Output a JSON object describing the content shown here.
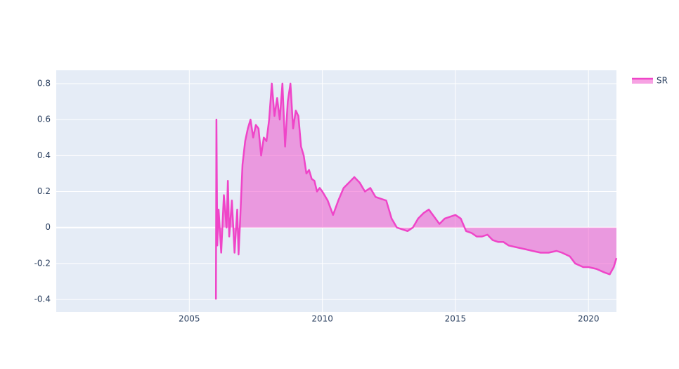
{
  "chart_data": {
    "type": "area",
    "x": [
      2006.0,
      2006.02,
      2006.05,
      2006.1,
      2006.2,
      2006.3,
      2006.4,
      2006.45,
      2006.5,
      2006.6,
      2006.7,
      2006.8,
      2006.85,
      2006.9,
      2007.0,
      2007.1,
      2007.2,
      2007.3,
      2007.4,
      2007.5,
      2007.6,
      2007.7,
      2007.8,
      2007.9,
      2008.0,
      2008.1,
      2008.2,
      2008.3,
      2008.4,
      2008.5,
      2008.6,
      2008.7,
      2008.8,
      2008.9,
      2009.0,
      2009.1,
      2009.2,
      2009.3,
      2009.4,
      2009.5,
      2009.6,
      2009.7,
      2009.8,
      2009.9,
      2010.0,
      2010.2,
      2010.4,
      2010.6,
      2010.8,
      2011.0,
      2011.2,
      2011.4,
      2011.6,
      2011.8,
      2012.0,
      2012.2,
      2012.4,
      2012.6,
      2012.8,
      2013.0,
      2013.2,
      2013.4,
      2013.6,
      2013.8,
      2014.0,
      2014.2,
      2014.4,
      2014.6,
      2014.8,
      2015.0,
      2015.2,
      2015.4,
      2015.6,
      2015.8,
      2016.0,
      2016.2,
      2016.4,
      2016.6,
      2016.8,
      2017.0,
      2017.3,
      2017.6,
      2017.9,
      2018.2,
      2018.5,
      2018.8,
      2019.0,
      2019.3,
      2019.5,
      2019.8,
      2020.0,
      2020.3,
      2020.6,
      2020.8,
      2020.95,
      2021.05
    ],
    "series": [
      {
        "name": "SR",
        "color": "#ef45c8",
        "values": [
          -0.4,
          0.6,
          -0.1,
          0.1,
          -0.14,
          0.18,
          0.0,
          0.26,
          -0.05,
          0.15,
          -0.14,
          0.1,
          -0.15,
          0.0,
          0.35,
          0.48,
          0.55,
          0.6,
          0.5,
          0.57,
          0.55,
          0.4,
          0.5,
          0.48,
          0.6,
          0.8,
          0.62,
          0.72,
          0.6,
          0.8,
          0.45,
          0.7,
          0.8,
          0.55,
          0.65,
          0.62,
          0.45,
          0.4,
          0.3,
          0.32,
          0.27,
          0.26,
          0.2,
          0.22,
          0.2,
          0.15,
          0.07,
          0.15,
          0.22,
          0.25,
          0.28,
          0.25,
          0.2,
          0.22,
          0.17,
          0.16,
          0.15,
          0.05,
          0.0,
          -0.01,
          -0.02,
          0.0,
          0.05,
          0.08,
          0.1,
          0.06,
          0.02,
          0.05,
          0.06,
          0.07,
          0.05,
          -0.02,
          -0.03,
          -0.05,
          -0.05,
          -0.04,
          -0.07,
          -0.08,
          -0.08,
          -0.1,
          -0.11,
          -0.12,
          -0.13,
          -0.14,
          -0.14,
          -0.13,
          -0.14,
          -0.16,
          -0.2,
          -0.22,
          -0.22,
          -0.23,
          -0.25,
          -0.26,
          -0.22,
          -0.17
        ]
      }
    ],
    "xlim": [
      2000.0,
      2021.05
    ],
    "xticks": [
      2005,
      2010,
      2015,
      2020
    ],
    "ylim": [
      -0.47,
      0.874
    ],
    "yticks": [
      -0.4,
      -0.2,
      0,
      0.2,
      0.4,
      0.6,
      0.8
    ],
    "grid": true,
    "legend": "top-right"
  }
}
